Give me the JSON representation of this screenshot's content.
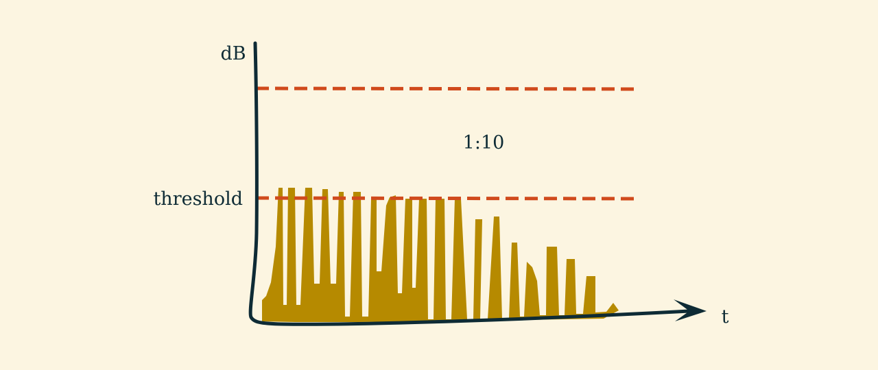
{
  "labels": {
    "y_axis": "dB",
    "x_axis": "t",
    "threshold": "threshold",
    "ratio": "1:10"
  },
  "colors": {
    "background": "#fcf5e1",
    "axis": "#0e2b35",
    "signal": "#b68a00",
    "limit_lines": "#d04a1c"
  },
  "signal": {
    "note": "audio level peaks over time, clipped at the threshold",
    "peaks": [
      0.93,
      0.95,
      0.96,
      0.95,
      0.94,
      0.93,
      0.92,
      0.9,
      0.89,
      0.88,
      0.87,
      0.86,
      0.84,
      0.78,
      0.76,
      0.56,
      0.54,
      0.51,
      0.49,
      0.45,
      0.42,
      0.37,
      0.32
    ]
  }
}
